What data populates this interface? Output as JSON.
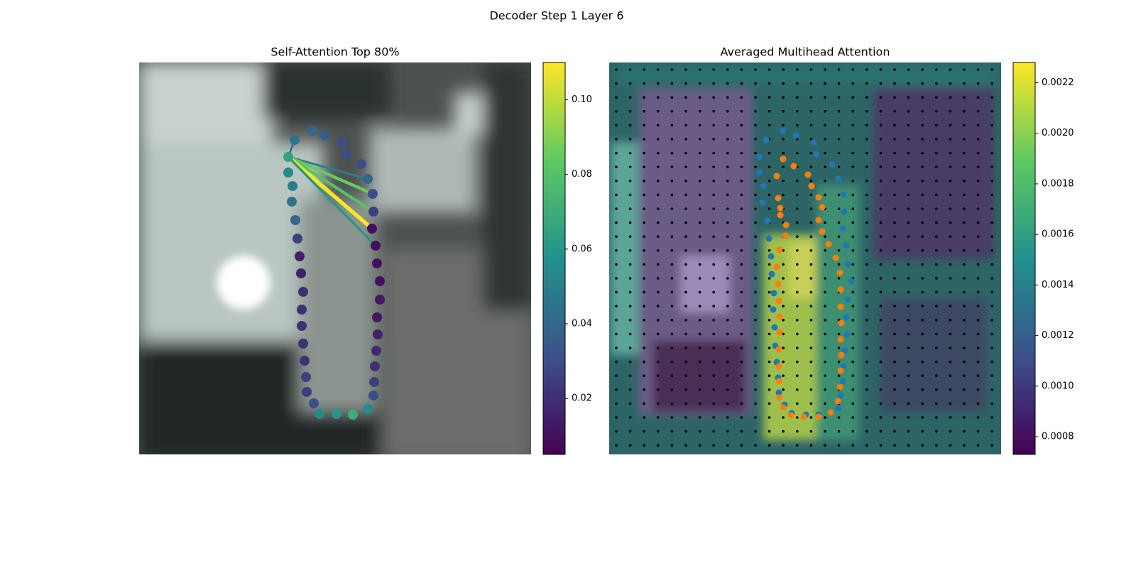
{
  "title": "Decoder Step 1 Layer 6",
  "chart_data": [
    {
      "type": "scatter",
      "title": "Self-Attention Top 80%",
      "colormap": "viridis",
      "xlim": [
        0,
        552
      ],
      "ylim": [
        552,
        0
      ],
      "x": [
        219,
        244,
        261,
        286,
        291,
        313,
        322,
        329,
        330,
        328,
        333,
        335,
        339,
        339,
        335,
        336,
        334,
        332,
        331,
        330,
        322,
        301,
        278,
        254,
        246,
        236,
        235,
        233,
        231,
        229,
        229,
        231,
        228,
        226,
        223,
        220,
        215,
        216,
        210,
        210
      ],
      "y": [
        109,
        96,
        102,
        113,
        129,
        143,
        164,
        185,
        210,
        234,
        258,
        283,
        308,
        334,
        359,
        383,
        406,
        428,
        450,
        469,
        488,
        496,
        495,
        495,
        480,
        464,
        443,
        420,
        396,
        371,
        348,
        323,
        297,
        273,
        248,
        222,
        196,
        174,
        155,
        133
      ],
      "values": [
        0.045,
        0.04,
        0.035,
        0.03,
        0.03,
        0.03,
        0.04,
        0.03,
        0.025,
        0.01,
        0.01,
        0.01,
        0.01,
        0.012,
        0.012,
        0.015,
        0.018,
        0.02,
        0.025,
        0.03,
        0.055,
        0.07,
        0.06,
        0.055,
        0.03,
        0.025,
        0.025,
        0.02,
        0.02,
        0.02,
        0.02,
        0.02,
        0.015,
        0.015,
        0.025,
        0.04,
        0.045,
        0.05,
        0.055,
        0.065
      ],
      "links": {
        "source": 39,
        "targets": [
          0,
          6,
          7,
          8,
          9,
          10
        ],
        "values": [
          0.035,
          0.05,
          0.085,
          0.08,
          0.11,
          0.06
        ]
      },
      "clim": [
        0.005,
        0.11
      ],
      "cticks": [
        0.02,
        0.04,
        0.06,
        0.08,
        {
          "value": 0.1,
          "label": "0.10"
        }
      ]
    },
    {
      "type": "scatter",
      "title": "Averaged Multihead Attention",
      "colormap": "viridis",
      "xlim": [
        0,
        552
      ],
      "ylim": [
        552,
        0
      ],
      "series": [
        {
          "color": "#1f77b4",
          "x": [
            245,
            263,
            288,
            292,
            314,
            323,
            330,
            331,
            329,
            334,
            336,
            341,
            336,
            334,
            335,
            332,
            330,
            329,
            326,
            323,
            313,
            295,
            277,
            257,
            247,
            239,
            238,
            236,
            234,
            233,
            231,
            232,
            229,
            228,
            225,
            223,
            216,
            217,
            212,
            212,
            221
          ],
          "y": [
            96,
            103,
            113,
            129,
            144,
            164,
            186,
            210,
            234,
            258,
            284,
            308,
            334,
            359,
            383,
            406,
            428,
            449,
            469,
            487,
            493,
            496,
            496,
            494,
            482,
            465,
            444,
            422,
            399,
            373,
            348,
            325,
            298,
            273,
            248,
            223,
            197,
            174,
            155,
            133,
            109
          ]
        },
        {
          "color": "#ff7f0e",
          "x": [
            245,
            260,
            280,
            285,
            295,
            300,
            295,
            300,
            309,
            319,
            325,
            326,
            326,
            327,
            326,
            327,
            326,
            325,
            322,
            312,
            295,
            274,
            256,
            245,
            240,
            239,
            239,
            239,
            240,
            240,
            239,
            238,
            236,
            240,
            248,
            249,
            241,
            241,
            238,
            236
          ],
          "y": [
            136,
            146,
            158,
            174,
            190,
            204,
            222,
            238,
            256,
            275,
            296,
            320,
            344,
            367,
            390,
            412,
            434,
            457,
            477,
            493,
            499,
            499,
            497,
            486,
            472,
            449,
            428,
            404,
            380,
            358,
            336,
            312,
            288,
            264,
            244,
            229,
            215,
            205,
            191,
            160
          ]
        }
      ],
      "clim": [
        0.00073,
        0.00228
      ],
      "cticks": [
        0.0008,
        {
          "value": 0.001,
          "label": "0.0010"
        },
        0.0012,
        0.0014,
        0.0016,
        0.0018,
        {
          "value": 0.002,
          "label": "0.0020"
        },
        0.0022
      ]
    }
  ]
}
